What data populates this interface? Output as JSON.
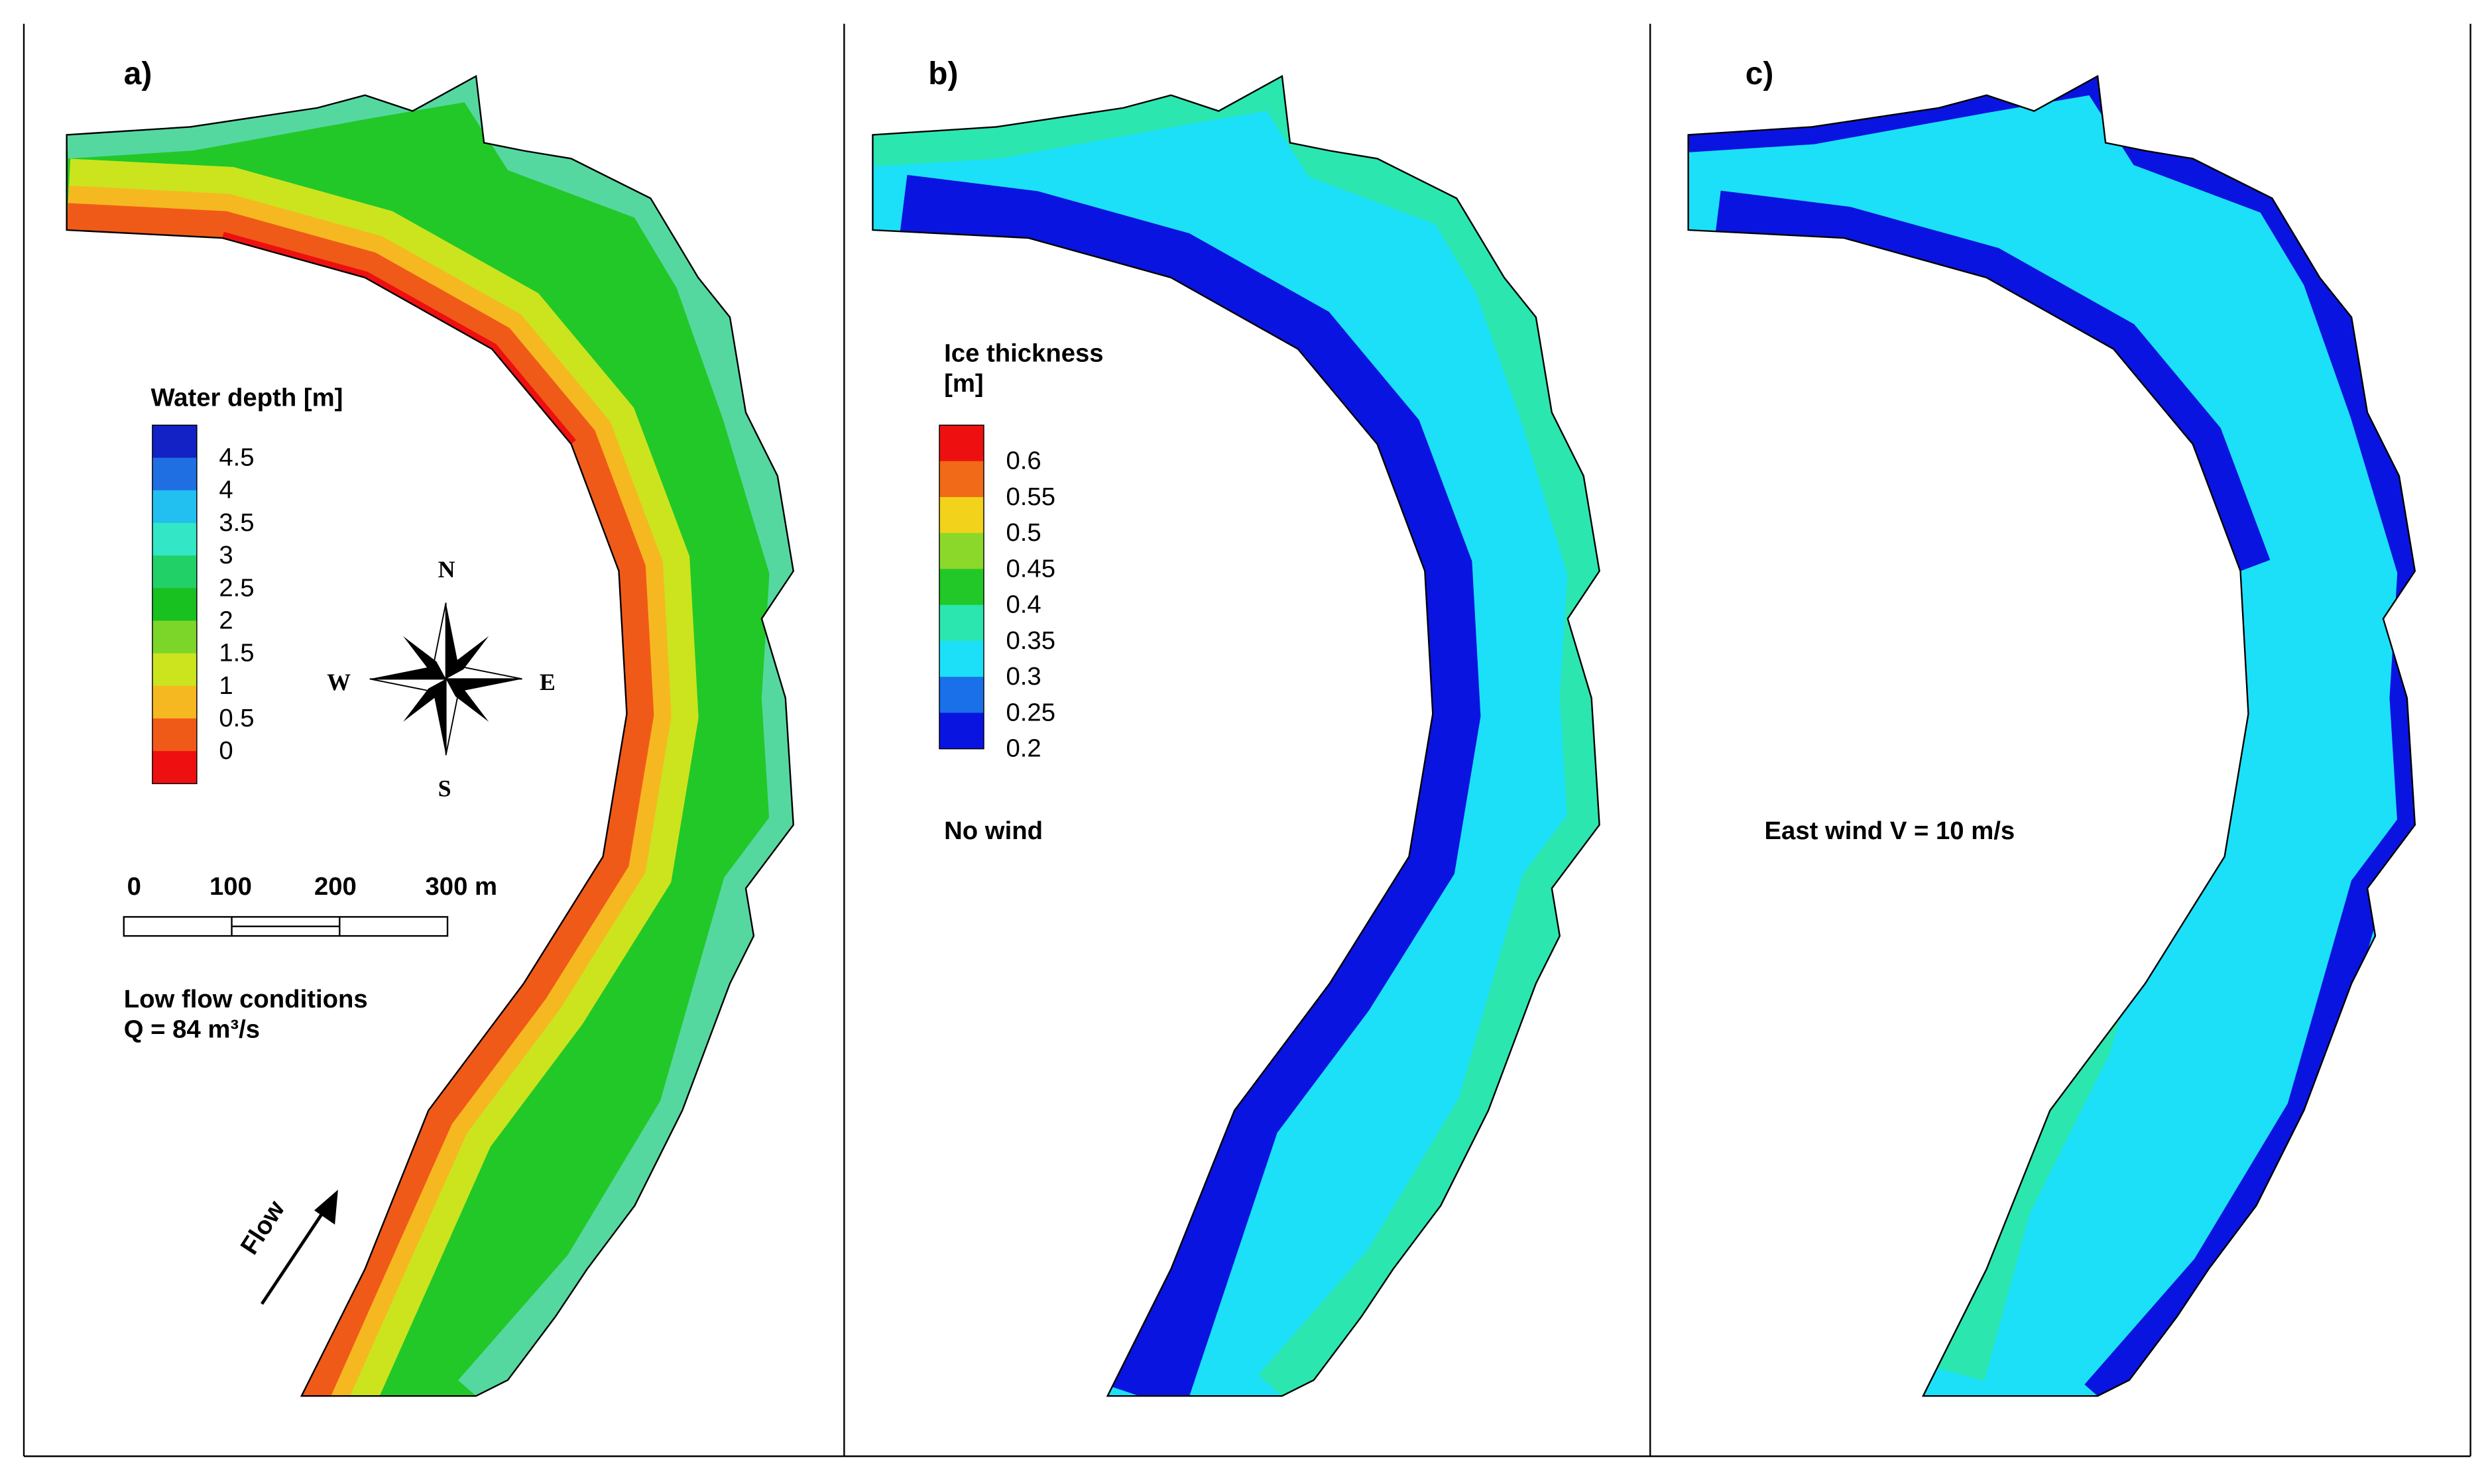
{
  "panels": [
    {
      "label": "a)",
      "legend": {
        "title": "Water depth [m]",
        "levels": [
          "4.5",
          "4",
          "3.5",
          "3",
          "2.5",
          "2",
          "1.5",
          "1",
          "0.5",
          "0"
        ],
        "colors": [
          "#1222c4",
          "#1f6fe2",
          "#22c0f0",
          "#33e6c6",
          "#22d068",
          "#18c020",
          "#7cd62a",
          "#cbe41e",
          "#f6b820",
          "#f05a18",
          "#ee1010"
        ]
      },
      "notes": [
        "Low flow conditions",
        "Q = 84 m³/s"
      ]
    },
    {
      "label": "b)",
      "legend": {
        "title": [
          "Ice thickness",
          "[m]"
        ],
        "levels": [
          "0.6",
          "0.55",
          "0.5",
          "0.45",
          "0.4",
          "0.35",
          "0.3",
          "0.25",
          "0.2"
        ],
        "colors": [
          "#ee1010",
          "#f06a18",
          "#f2d21a",
          "#8cd82a",
          "#22c828",
          "#2ce6b0",
          "#1ce0f8",
          "#1a70e8",
          "#0a14e0"
        ]
      },
      "notes": [
        "No wind"
      ]
    },
    {
      "label": "c)",
      "notes": [
        "East wind V = 10 m/s"
      ]
    }
  ],
  "compass": {
    "n": "N",
    "e": "E",
    "s": "S",
    "w": "W"
  },
  "scale_bar": [
    "0",
    "100",
    "200",
    "300 m"
  ],
  "flow": "Flow"
}
